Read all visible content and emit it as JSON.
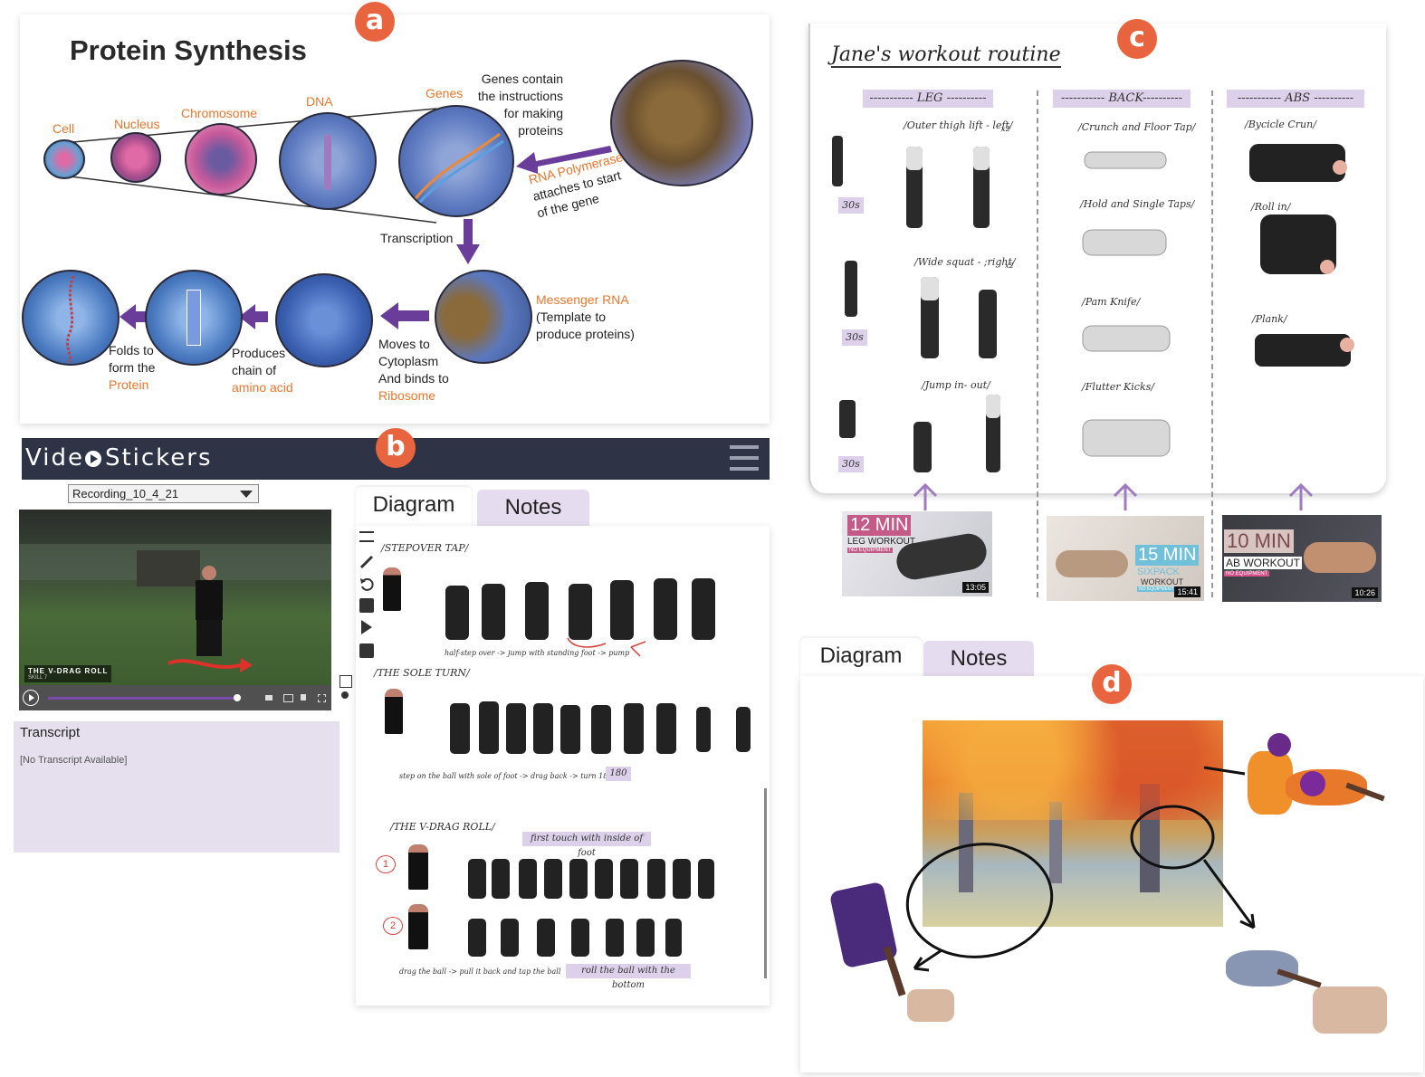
{
  "badges": {
    "a": "a",
    "b": "b",
    "c": "c",
    "d": "d"
  },
  "panel_a": {
    "title": "Protein Synthesis",
    "stages": [
      "Cell",
      "Nucleus",
      "Chromosome",
      "DNA",
      "Genes"
    ],
    "genes_note": [
      "Genes contain",
      "the instructions",
      "for making",
      "proteins"
    ],
    "rna_poly": "RNA Polymerase",
    "rna_poly_rest": [
      "attaches to start",
      "of the gene"
    ],
    "transcription": "Transcription",
    "mrna_title": "Messenger RNA",
    "mrna_rest": [
      "(Template to",
      "produce proteins)"
    ],
    "moves": [
      "Moves to",
      "Cytoplasm",
      "And binds to"
    ],
    "ribosome": "Ribosome",
    "produces": [
      "Produces",
      "chain of"
    ],
    "amino": "amino acid",
    "folds": [
      "Folds to",
      "form the"
    ],
    "protein": "Protein"
  },
  "panel_b": {
    "app_title_1": "Vide",
    "app_title_2": "Stickers",
    "recording": "Recording_10_4_21",
    "video_caption": "THE V-DRAG ROLL",
    "video_caption_sub": "SKILL 7",
    "transcript_title": "Transcript",
    "transcript_body": "[No Transcript Available]",
    "tab_diagram": "Diagram",
    "tab_notes": "Notes",
    "sections": [
      {
        "title": "/STEPOVER TAP/",
        "note": "half-step over -> jump with standing foot -> pump"
      },
      {
        "title": "/THE SOLE TURN/",
        "note": "step on the ball with sole of foot -> drag back -> turn 180",
        "tag": "180"
      },
      {
        "title": "/THE V-DRAG ROLL/",
        "note": "drag the ball -> pull it back and tap the ball",
        "tag1": "first touch with inside of foot",
        "tag2": "roll the ball with the bottom",
        "step1": "1",
        "step2": "2"
      }
    ]
  },
  "panel_c": {
    "title": "Jane's workout routine",
    "columns": [
      {
        "header": "----------- LEG ----------",
        "exercises": [
          "/Outer thigh lift - left/",
          "/Wide squat - ;right/",
          "/Jump in- out/"
        ],
        "rep": "x2",
        "times": [
          "30s",
          "30s",
          "30s"
        ]
      },
      {
        "header": "----------- BACK----------",
        "exercises": [
          "/Crunch and Floor Tap/",
          "/Hold and Single Taps/",
          "/Pam Knife/",
          "/Flutter Kicks/"
        ]
      },
      {
        "header": "----------- ABS ----------",
        "exercises": [
          "/Bycicle Crun/",
          "/Roll in/",
          "/Plank/"
        ]
      }
    ],
    "videos": [
      {
        "big": "12 MIN",
        "small": "LEG WORKOUT",
        "tiny": "NO EQUIPMENT",
        "dur": "13:05"
      },
      {
        "big": "15 MIN",
        "small": "SIXPACK",
        "small2": "WORKOUT",
        "tiny": "NO EQUIPMENT",
        "dur": "15:41"
      },
      {
        "big": "10 MIN",
        "small": "AB WORKOUT",
        "tiny": "NO EQUIPMENT",
        "dur": "10:26"
      }
    ]
  },
  "panel_d": {
    "tab_diagram": "Diagram",
    "tab_notes": "Notes"
  },
  "colors": {
    "accent": "#e8643f",
    "purple": "#6a3d9a",
    "pill": "#dcd0ea",
    "nav": "#2e3346"
  }
}
